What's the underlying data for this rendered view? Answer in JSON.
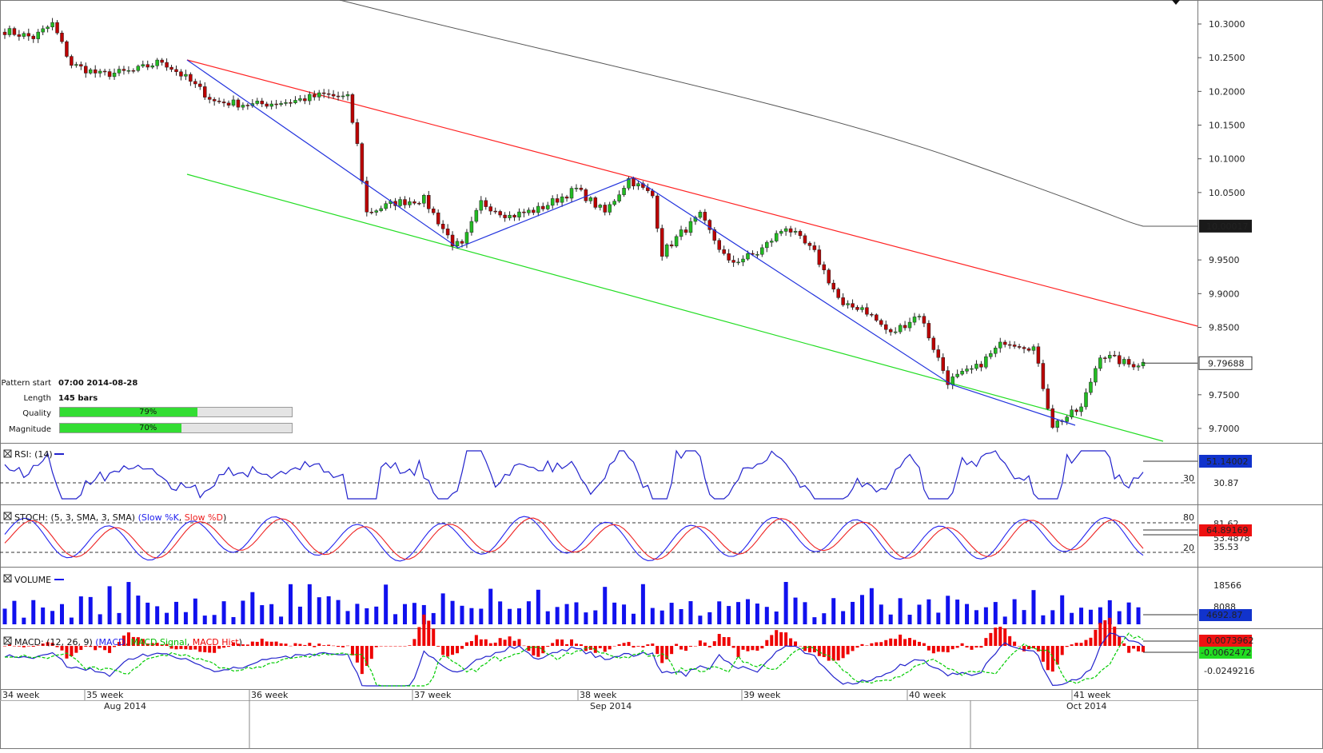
{
  "price_axis": {
    "ticks": [
      "10.3000",
      "10.2500",
      "10.2000",
      "10.1500",
      "10.1000",
      "10.0500",
      "9.9500",
      "9.9000",
      "9.8500",
      "9.7500",
      "9.7000"
    ],
    "ma_label": "10.00017",
    "last_label": "9.79688"
  },
  "pattern_info": {
    "start_label": "Pattern start",
    "start_value": "07:00 2014-08-28",
    "length_label": "Length",
    "length_value": "145 bars",
    "quality_label": "Quality",
    "quality_value": "79%",
    "quality_pct": 79,
    "magnitude_label": "Magnitude",
    "magnitude_value": "70%",
    "magnitude_pct": 70
  },
  "rsi": {
    "title": "RSI: (14)",
    "level": "30",
    "tick": "30.87",
    "value": "51.14002"
  },
  "stoch": {
    "title_main": "STOCH: (5, 3, SMA, 3, SMA) ",
    "title_k": "(Slow %K",
    "title_sep": ", ",
    "title_d": "Slow %D",
    "title_end": ")",
    "level_high": "80",
    "level_low": "20",
    "tick_high": "81.62",
    "tick_mid": "53.4878",
    "tick_low": "35.53",
    "value": "64.89169"
  },
  "volume": {
    "title": "VOLUME",
    "tick_high": "18566",
    "tick_mid": "8088",
    "value": "4692.87"
  },
  "macd": {
    "title_main": "MACD: (12, 26, 9) ",
    "title_macd": "(MACD",
    "title_sep1": ", ",
    "title_signal": "MACD Signal",
    "title_sep2": ", ",
    "title_hist": "MACD Hist",
    "title_end": ")",
    "value_hist": "0.0073962",
    "value_signal": "-0.0062472",
    "tick_low": "-0.0249216"
  },
  "time_axis": {
    "weeks": [
      "34 week",
      "35 week",
      "36 week",
      "37 week",
      "38 week",
      "39 week",
      "40 week",
      "41 week"
    ],
    "months": [
      "Aug 2014",
      "Sep 2014",
      "Oct 2014"
    ]
  },
  "colors": {
    "bull": "#22bb22",
    "bear": "#bb0000",
    "resistance": "#ff2222",
    "support": "#22dd22",
    "zigzag": "#2233dd",
    "ma": "#555555",
    "rsi": "#2222cc",
    "stoch_k": "#2222ee",
    "stoch_d": "#ee2222",
    "volume": "#1111ee",
    "macd_hist": "#ee0000",
    "macd_signal": "#00cc00"
  },
  "chart_data": [
    {
      "type": "candlestick",
      "title": "",
      "ylim": [
        9.68,
        10.32
      ],
      "x_weeks": [
        "34 week",
        "35 week",
        "36 week",
        "37 week",
        "38 week",
        "39 week",
        "40 week",
        "41 week"
      ],
      "close_points": [
        {
          "bar": 0,
          "close": 10.29
        },
        {
          "bar": 6,
          "close": 10.28
        },
        {
          "bar": 10,
          "close": 10.3
        },
        {
          "bar": 14,
          "close": 10.24
        },
        {
          "bar": 20,
          "close": 10.225
        },
        {
          "bar": 27,
          "close": 10.23
        },
        {
          "bar": 33,
          "close": 10.245
        },
        {
          "bar": 38,
          "close": 10.22
        },
        {
          "bar": 44,
          "close": 10.185
        },
        {
          "bar": 52,
          "close": 10.18
        },
        {
          "bar": 60,
          "close": 10.185
        },
        {
          "bar": 67,
          "close": 10.195
        },
        {
          "bar": 72,
          "close": 10.19
        },
        {
          "bar": 74,
          "close": 10.12
        },
        {
          "bar": 76,
          "close": 10.02
        },
        {
          "bar": 82,
          "close": 10.035
        },
        {
          "bar": 88,
          "close": 10.04
        },
        {
          "bar": 94,
          "close": 9.975
        },
        {
          "bar": 96,
          "close": 9.97
        },
        {
          "bar": 100,
          "close": 10.035
        },
        {
          "bar": 106,
          "close": 10.015
        },
        {
          "bar": 112,
          "close": 10.025
        },
        {
          "bar": 120,
          "close": 10.055
        },
        {
          "bar": 126,
          "close": 10.02
        },
        {
          "bar": 131,
          "close": 10.07
        },
        {
          "bar": 136,
          "close": 10.045
        },
        {
          "bar": 138,
          "close": 9.96
        },
        {
          "bar": 142,
          "close": 9.99
        },
        {
          "bar": 146,
          "close": 10.015
        },
        {
          "bar": 152,
          "close": 9.945
        },
        {
          "bar": 158,
          "close": 9.96
        },
        {
          "bar": 164,
          "close": 10.0
        },
        {
          "bar": 170,
          "close": 9.96
        },
        {
          "bar": 176,
          "close": 9.88
        },
        {
          "bar": 180,
          "close": 9.88
        },
        {
          "bar": 186,
          "close": 9.84
        },
        {
          "bar": 192,
          "close": 9.87
        },
        {
          "bar": 198,
          "close": 9.77
        },
        {
          "bar": 204,
          "close": 9.79
        },
        {
          "bar": 210,
          "close": 9.83
        },
        {
          "bar": 216,
          "close": 9.82
        },
        {
          "bar": 220,
          "close": 9.705
        },
        {
          "bar": 226,
          "close": 9.73
        },
        {
          "bar": 230,
          "close": 9.81
        },
        {
          "bar": 236,
          "close": 9.795
        },
        {
          "bar": 239,
          "close": 9.797
        }
      ],
      "ma_last": 10.00017,
      "last_price": 9.79688
    },
    {
      "type": "line",
      "title": "RSI: (14)",
      "level": 30,
      "last": 51.14002
    },
    {
      "type": "line",
      "title": "STOCH: (5, 3, SMA, 3, SMA)",
      "levels": [
        80,
        20
      ],
      "last_d": 64.89169
    },
    {
      "type": "bar",
      "title": "VOLUME",
      "last": 4692.87
    },
    {
      "type": "bar+line",
      "title": "MACD: (12, 26, 9)",
      "last_hist": 0.0073962,
      "last_signal": -0.0062472
    }
  ]
}
